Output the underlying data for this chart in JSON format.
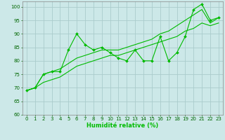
{
  "xlabel": "Humidité relative (%)",
  "background_color": "#cce8e8",
  "grid_color": "#aacccc",
  "line_color": "#00bb00",
  "ylim": [
    60,
    102
  ],
  "xlim": [
    -0.5,
    23.5
  ],
  "yticks": [
    60,
    65,
    70,
    75,
    80,
    85,
    90,
    95,
    100
  ],
  "xticks": [
    0,
    1,
    2,
    3,
    4,
    5,
    6,
    7,
    8,
    9,
    10,
    11,
    12,
    13,
    14,
    15,
    16,
    17,
    18,
    19,
    20,
    21,
    22,
    23
  ],
  "main_x": [
    0,
    1,
    2,
    3,
    4,
    5,
    6,
    7,
    8,
    9,
    10,
    11,
    12,
    13,
    14,
    15,
    16,
    17,
    18,
    19,
    20,
    21,
    22,
    23
  ],
  "main_y": [
    69,
    70,
    75,
    76,
    76,
    84,
    90,
    86,
    84,
    85,
    83,
    81,
    80,
    84,
    80,
    80,
    89,
    80,
    83,
    89,
    99,
    101,
    95,
    96
  ],
  "smooth1_x": [
    0,
    1,
    2,
    3,
    4,
    5,
    6,
    7,
    8,
    9,
    10,
    11,
    12,
    13,
    14,
    15,
    16,
    17,
    18,
    19,
    20,
    21,
    22,
    23
  ],
  "smooth1_y": [
    69,
    70,
    75,
    76,
    77,
    79,
    81,
    82,
    83,
    84,
    84,
    84,
    85,
    86,
    87,
    88,
    90,
    91,
    93,
    95,
    97,
    99,
    94,
    96
  ],
  "smooth2_x": [
    0,
    1,
    2,
    3,
    4,
    5,
    6,
    7,
    8,
    9,
    10,
    11,
    12,
    13,
    14,
    15,
    16,
    17,
    18,
    19,
    20,
    21,
    22,
    23
  ],
  "smooth2_y": [
    69,
    70,
    72,
    73,
    74,
    76,
    78,
    79,
    80,
    81,
    82,
    82,
    83,
    84,
    85,
    86,
    87,
    88,
    89,
    91,
    92,
    94,
    93,
    94
  ],
  "xlabel_fontsize": 6.0,
  "tick_fontsize": 5.0,
  "line_width": 0.8,
  "marker_size": 2.0
}
